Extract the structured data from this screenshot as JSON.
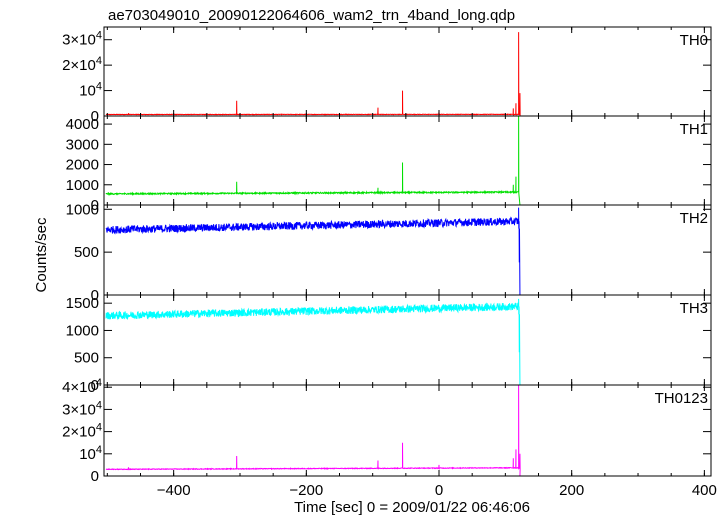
{
  "chart_data": {
    "type": "line",
    "title": "ae703049010_20090122064606_wam2_trn_4band_long.qdp",
    "xlabel": "Time [sec] 0 = 2009/01/22 06:46:06",
    "ylabel": "Counts/sec",
    "xlim": [
      -505,
      410
    ],
    "x_ticks": [
      {
        "value": -400,
        "label": "−400"
      },
      {
        "value": -200,
        "label": "−200"
      },
      {
        "value": 0,
        "label": "0"
      },
      {
        "value": 200,
        "label": "200"
      },
      {
        "value": 400,
        "label": "400"
      }
    ],
    "burst_time": 120,
    "panels": [
      {
        "name": "TH0",
        "color": "#ff0000",
        "ylim": [
          0,
          35000
        ],
        "y_ticks": [
          {
            "value": 0,
            "label": "0"
          },
          {
            "value": 10000,
            "label": "10",
            "exp": "4"
          },
          {
            "value": 20000,
            "label": "2×10",
            "exp": "4"
          },
          {
            "value": 30000,
            "label": "3×10",
            "exp": "4"
          }
        ],
        "baseline_start": 600,
        "baseline_end": 650,
        "noise": 80,
        "post_burst_level": 0,
        "spikes": [
          [
            -468,
            1100
          ],
          [
            -305,
            6000
          ],
          [
            -140,
            900
          ],
          [
            -92,
            3300
          ],
          [
            -55,
            10000
          ],
          [
            0,
            2000
          ],
          [
            112,
            3000
          ],
          [
            116,
            5000
          ],
          [
            120,
            33000
          ],
          [
            122,
            9000
          ]
        ]
      },
      {
        "name": "TH1",
        "color": "#00e000",
        "ylim": [
          0,
          4400
        ],
        "y_ticks": [
          {
            "value": 0,
            "label": "0"
          },
          {
            "value": 1000,
            "label": "1000"
          },
          {
            "value": 2000,
            "label": "2000"
          },
          {
            "value": 3000,
            "label": "3000"
          },
          {
            "value": 4000,
            "label": "4000"
          }
        ],
        "baseline_start": 550,
        "baseline_end": 640,
        "noise": 30,
        "post_burst_level": 0,
        "spikes": [
          [
            -305,
            1150
          ],
          [
            -92,
            850
          ],
          [
            -55,
            2100
          ],
          [
            112,
            1000
          ],
          [
            116,
            1400
          ],
          [
            120,
            4400
          ]
        ]
      },
      {
        "name": "TH2",
        "color": "#0000ff",
        "ylim": [
          0,
          1050
        ],
        "y_ticks": [
          {
            "value": 0,
            "label": "0"
          },
          {
            "value": 500,
            "label": "500"
          },
          {
            "value": 1000,
            "label": "1000"
          }
        ],
        "baseline_start": 760,
        "baseline_end": 860,
        "noise": 45,
        "post_burst_level": 0,
        "spikes": [
          [
            120,
            1020
          ],
          [
            121,
            380
          ]
        ]
      },
      {
        "name": "TH3",
        "color": "#00ffff",
        "ylim": [
          0,
          1650
        ],
        "y_ticks": [
          {
            "value": 0,
            "label": "0"
          },
          {
            "value": 500,
            "label": "500"
          },
          {
            "value": 1000,
            "label": "1000"
          },
          {
            "value": 1500,
            "label": "1500"
          }
        ],
        "baseline_start": 1270,
        "baseline_end": 1440,
        "noise": 70,
        "post_burst_level": 0,
        "spikes": [
          [
            120,
            1580
          ],
          [
            121,
            600
          ]
        ]
      },
      {
        "name": "TH0123",
        "color": "#ff00ff",
        "ylim": [
          0,
          41000
        ],
        "y_ticks": [
          {
            "value": 0,
            "label": "0"
          },
          {
            "value": 10000,
            "label": "10",
            "exp": "4"
          },
          {
            "value": 20000,
            "label": "2×10",
            "exp": "4"
          },
          {
            "value": 30000,
            "label": "3×10",
            "exp": "4"
          },
          {
            "value": 40000,
            "label": "4×10",
            "exp": "4"
          }
        ],
        "baseline_start": 3000,
        "baseline_end": 3700,
        "noise": 150,
        "post_burst_level": 0,
        "spikes": [
          [
            -468,
            3900
          ],
          [
            -305,
            9000
          ],
          [
            -92,
            7000
          ],
          [
            -55,
            15000
          ],
          [
            0,
            5000
          ],
          [
            112,
            8000
          ],
          [
            116,
            12000
          ],
          [
            120,
            41000
          ],
          [
            122,
            10000
          ]
        ]
      }
    ]
  }
}
